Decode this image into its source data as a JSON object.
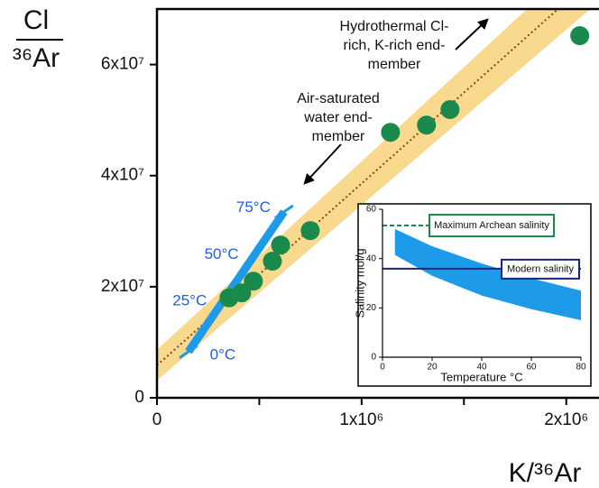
{
  "chart_data": [
    {
      "type": "scatter",
      "ylabel_numerator": "Cl",
      "ylabel_denominator": "³⁶Ar",
      "xlabel": "K/³⁶Ar",
      "x": [
        352000,
        414000,
        471000,
        564000,
        604000,
        749000,
        1141000,
        1317000,
        1432000,
        2066000
      ],
      "y": [
        18000000,
        18900000,
        21000000,
        24600000,
        27500000,
        30100000,
        47800000,
        49100000,
        51900000,
        65200000
      ],
      "color": "#1a8a4c",
      "xlim": [
        0,
        2160000
      ],
      "ylim": [
        0,
        70000000
      ],
      "xticks": [
        0,
        {
          "value": 1000000,
          "label": "1x10⁶"
        },
        {
          "value": 2000000,
          "label": "2x10⁶"
        }
      ],
      "xminor_ticks": [
        500000,
        1500000
      ],
      "yticks": [
        0,
        {
          "value": 20000000,
          "label": "2x10⁷"
        },
        {
          "value": 40000000,
          "label": "4x10⁷"
        },
        {
          "value": 60000000,
          "label": "6x10⁷"
        }
      ],
      "fit_line": {
        "x": [
          0,
          1960000
        ],
        "y": [
          5850000,
          70000000
        ],
        "color": "#8b4513",
        "band_color": "#f7d27a"
      },
      "temperature_line": {
        "x": [
          154000,
          621000
        ],
        "y": [
          8300000,
          33500000
        ],
        "labels": [
          "0°C",
          "25°C",
          "50°C",
          "75°C"
        ],
        "color": "#1e9be8",
        "label_color": "#1f5fe0"
      },
      "annotations": [
        {
          "lines": [
            "Hydrothermal Cl-",
            "rich, K-rich end-",
            "member"
          ]
        },
        {
          "lines": [
            "Air-saturated",
            "water end-",
            "member"
          ]
        }
      ]
    },
    {
      "type": "band",
      "xlabel": "Temperature °C",
      "ylabel": "Salinity mol/g",
      "x": [
        5,
        20,
        40,
        60,
        80
      ],
      "upper": [
        52,
        45,
        38,
        32,
        27
      ],
      "lower": [
        41.5,
        33,
        25,
        19.5,
        15
      ],
      "color": "#1e9be8",
      "xlim": [
        0,
        80
      ],
      "ylim": [
        0,
        60
      ],
      "xticks": [
        0,
        20,
        40,
        60,
        80
      ],
      "yticks": [
        0,
        20,
        40,
        60
      ],
      "reference_lines": [
        {
          "name": "Maximum Archean salinity",
          "value": 53.4,
          "color": "#1a8a4c",
          "dashed": true
        },
        {
          "name": "Modern salinity",
          "value": 35.9,
          "color": "#1a237e",
          "dashed": false
        }
      ]
    }
  ]
}
